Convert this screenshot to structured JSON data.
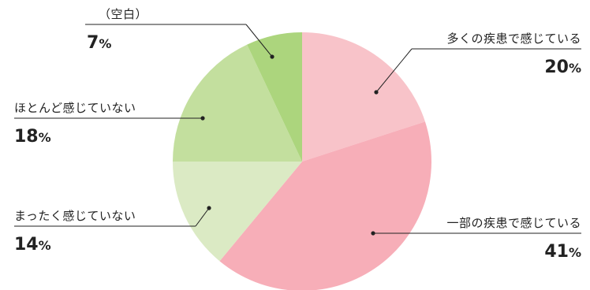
{
  "chart_data": {
    "type": "pie",
    "start_angle_deg": 0,
    "direction": "clockwise",
    "unit": "%",
    "slices": [
      {
        "label": "多くの疾患で感じている",
        "value": 20,
        "value_label": "20",
        "color": "#f8c3c9"
      },
      {
        "label": "一部の疾患で感じている",
        "value": 41,
        "value_label": "41",
        "color": "#f7aeb8"
      },
      {
        "label": "まったく感じていない",
        "value": 14,
        "value_label": "14",
        "color": "#dbeac4"
      },
      {
        "label": "ほとんど感じていない",
        "value": 18,
        "value_label": "18",
        "color": "#c3df9e"
      },
      {
        "label": "（空白）",
        "value": 7,
        "value_label": "7",
        "color": "#acd57d"
      }
    ]
  }
}
